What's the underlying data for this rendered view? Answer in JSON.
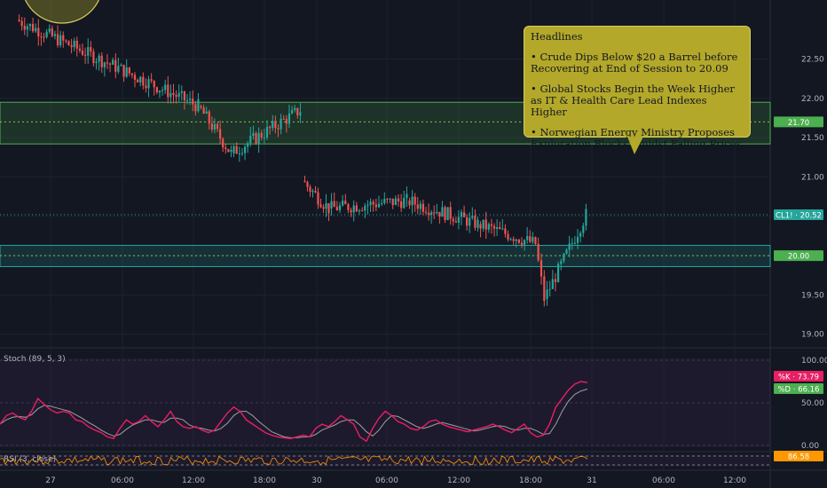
{
  "chart_data": [
    {
      "type": "candlestick",
      "x_ticks": [
        "27",
        "06:00",
        "12:00",
        "18:00",
        "30",
        "06:00",
        "12:00",
        "18:00",
        "31",
        "06:00",
        "12:00"
      ],
      "y_ticks": [
        "22.50",
        "22.00",
        "21.50",
        "21.00",
        "20.50",
        "20.00",
        "19.50",
        "19.00"
      ],
      "ylim": [
        18.85,
        23.25
      ],
      "price_badges": [
        {
          "label": "21.70",
          "value": 21.7,
          "color": "#4caf50"
        },
        {
          "label": "CL1! · 20.52",
          "value": 20.52,
          "color": "#26a69a"
        },
        {
          "label": "20.00",
          "value": 20.0,
          "color": "#4caf50"
        }
      ],
      "zones": [
        {
          "from": 21.42,
          "to": 21.95,
          "color": "#4caf50"
        },
        {
          "from": 19.86,
          "to": 20.13,
          "color": "#26a69a"
        }
      ],
      "dotted_levels": [
        21.7,
        20.0
      ],
      "session_segments": [
        {
          "start": 23.0,
          "end": 21.9
        },
        {
          "start": 21.9,
          "end": 21.3
        },
        {
          "start": 21.3,
          "end": 21.85
        },
        {
          "start": 20.95,
          "end": 20.6
        },
        {
          "start": 20.6,
          "end": 20.7
        },
        {
          "start": 20.7,
          "end": 20.4
        },
        {
          "start": 20.4,
          "end": 20.15
        },
        {
          "start": 20.15,
          "end": 19.45
        },
        {
          "start": 19.45,
          "end": 20.52
        }
      ],
      "callout": {
        "title": "Headlines",
        "items": [
          "• Crude Dips Below $20 a Barrel before Recovering at End of Session to 20.09",
          "• Global Stocks Begin the Week Higher as IT & Health Care Lead Indexes Higher",
          "• Norwegian Energy Ministry Proposes Exploration Blocks Amidst Falling Prices"
        ]
      },
      "colors": {
        "up": "#26a69a",
        "down": "#ef5350",
        "background": "#131722",
        "grid": "#1e2230"
      }
    },
    {
      "type": "line",
      "title": "Stoch (89, 5, 3)",
      "y_ticks": [
        "100.00",
        "50.00",
        "0.00"
      ],
      "ylim": [
        0,
        100
      ],
      "series": [
        {
          "name": "%K",
          "badge": "%K · 73.79",
          "last": 73.79,
          "color": "#e91e63",
          "values": [
            25,
            35,
            38,
            33,
            30,
            40,
            55,
            48,
            42,
            38,
            40,
            38,
            30,
            28,
            22,
            18,
            15,
            10,
            8,
            20,
            30,
            25,
            28,
            35,
            28,
            22,
            30,
            40,
            28,
            22,
            20,
            22,
            18,
            15,
            18,
            28,
            38,
            45,
            40,
            30,
            25,
            20,
            15,
            12,
            10,
            9,
            8,
            10,
            12,
            10,
            20,
            25,
            22,
            28,
            35,
            30,
            25,
            10,
            5,
            20,
            32,
            40,
            35,
            28,
            25,
            20,
            18,
            22,
            28,
            30,
            25,
            22,
            20,
            18,
            16,
            18,
            20,
            22,
            25,
            22,
            18,
            15,
            20,
            25,
            15,
            10,
            12,
            25,
            45,
            55,
            65,
            72,
            75,
            73.79
          ]
        },
        {
          "name": "%D",
          "badge": "%D · 66.16",
          "last": 66.16,
          "color": "#9e9e9e",
          "values": [
            25,
            30,
            33,
            34,
            33,
            36,
            43,
            47,
            46,
            44,
            42,
            40,
            36,
            32,
            27,
            23,
            18,
            14,
            11,
            13,
            19,
            24,
            27,
            30,
            30,
            28,
            27,
            32,
            32,
            30,
            24,
            21,
            20,
            18,
            17,
            20,
            26,
            35,
            40,
            40,
            35,
            28,
            22,
            16,
            13,
            10,
            9,
            9,
            10,
            10,
            13,
            18,
            21,
            24,
            28,
            30,
            30,
            24,
            16,
            11,
            18,
            28,
            35,
            34,
            30,
            26,
            22,
            20,
            22,
            25,
            27,
            25,
            23,
            21,
            19,
            17,
            18,
            20,
            22,
            23,
            22,
            19,
            18,
            20,
            20,
            17,
            13,
            14,
            25,
            40,
            52,
            60,
            64,
            66.16
          ]
        }
      ]
    },
    {
      "type": "line",
      "title": "RSI (3, close)",
      "badge": "86.58",
      "last": 86.58,
      "color": "#ff9800"
    }
  ]
}
